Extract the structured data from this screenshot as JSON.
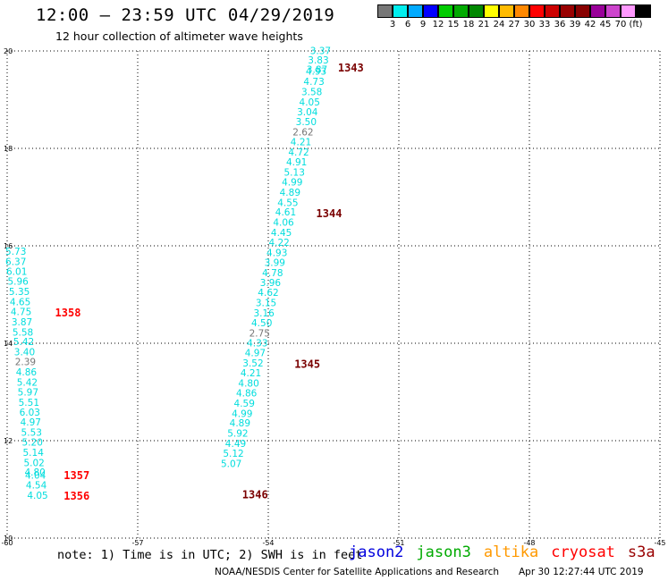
{
  "header": {
    "title": "12:00 – 23:59 UTC 04/29/2019",
    "subtitle": "12 hour collection of altimeter wave heights"
  },
  "color_scale": {
    "colors": [
      "#777777",
      "#00eeee",
      "#00aaff",
      "#0000ff",
      "#00cc00",
      "#00aa00",
      "#008800",
      "#ffff00",
      "#ffbb00",
      "#ff8800",
      "#ff0000",
      "#cc0000",
      "#990000",
      "#880000",
      "#990099",
      "#cc44cc",
      "#ff99ff",
      "#000000"
    ],
    "labels": [
      "3",
      "6",
      "9",
      "12",
      "15",
      "18",
      "21",
      "24",
      "27",
      "30",
      "33",
      "36",
      "39",
      "42",
      "45",
      "70",
      "(ft)"
    ]
  },
  "chart_data": {
    "type": "scatter",
    "xlim": [
      -60,
      -45
    ],
    "ylim": [
      10,
      20
    ],
    "x_ticks": [
      "-60",
      "-57",
      "-54",
      "-51",
      "-48",
      "-45"
    ],
    "y_ticks": [
      "20",
      "18",
      "16",
      "14",
      "12",
      "10"
    ],
    "grid": true,
    "series": [
      {
        "name": "jason2",
        "color": "#00dddd",
        "points": [
          {
            "x": -52.8,
            "y": 19.94,
            "label": "3.37"
          },
          {
            "x": -52.85,
            "y": 19.74,
            "label": "3.83"
          },
          {
            "x": -52.88,
            "y": 19.55,
            "label": "3.87"
          },
          {
            "x": -52.9,
            "y": 19.51,
            "label": "4.93"
          },
          {
            "x": -52.95,
            "y": 19.3,
            "label": "4.73"
          },
          {
            "x": -53.0,
            "y": 19.09,
            "label": "3.58"
          },
          {
            "x": -53.05,
            "y": 18.88,
            "label": "4.05"
          },
          {
            "x": -53.1,
            "y": 18.68,
            "label": "3.04"
          },
          {
            "x": -53.13,
            "y": 18.48,
            "label": "3.50"
          },
          {
            "x": -53.2,
            "y": 18.27,
            "label": "2.62",
            "color": "#777777"
          },
          {
            "x": -53.25,
            "y": 18.06,
            "label": "4.21"
          },
          {
            "x": -53.3,
            "y": 17.85,
            "label": "4.72"
          },
          {
            "x": -53.35,
            "y": 17.65,
            "label": "4.91"
          },
          {
            "x": -53.4,
            "y": 17.44,
            "label": "5.13"
          },
          {
            "x": -53.45,
            "y": 17.24,
            "label": "4.99"
          },
          {
            "x": -53.5,
            "y": 17.03,
            "label": "4.89"
          },
          {
            "x": -53.55,
            "y": 16.82,
            "label": "4.55"
          },
          {
            "x": -53.6,
            "y": 16.62,
            "label": "4.61"
          },
          {
            "x": -53.65,
            "y": 16.41,
            "label": "4.06"
          },
          {
            "x": -53.7,
            "y": 16.2,
            "label": "4.45"
          },
          {
            "x": -53.75,
            "y": 16.0,
            "label": "4.22"
          },
          {
            "x": -53.8,
            "y": 15.79,
            "label": "4.93"
          },
          {
            "x": -53.85,
            "y": 15.59,
            "label": "3.99"
          },
          {
            "x": -53.9,
            "y": 15.38,
            "label": "4.78"
          },
          {
            "x": -53.95,
            "y": 15.17,
            "label": "3.96"
          },
          {
            "x": -54.0,
            "y": 14.97,
            "label": "4.62"
          },
          {
            "x": -54.05,
            "y": 14.76,
            "label": "3.15"
          },
          {
            "x": -54.1,
            "y": 14.55,
            "label": "3.16"
          },
          {
            "x": -54.15,
            "y": 14.35,
            "label": "4.50"
          },
          {
            "x": -54.2,
            "y": 14.14,
            "label": "2.75",
            "color": "#777777"
          },
          {
            "x": -54.25,
            "y": 13.94,
            "label": "4.33"
          },
          {
            "x": -54.3,
            "y": 13.73,
            "label": "4.97"
          },
          {
            "x": -54.35,
            "y": 13.52,
            "label": "3.52"
          },
          {
            "x": -54.4,
            "y": 13.32,
            "label": "4.21"
          },
          {
            "x": -54.45,
            "y": 13.11,
            "label": "4.80"
          },
          {
            "x": -54.5,
            "y": 12.91,
            "label": "4.86"
          },
          {
            "x": -54.55,
            "y": 12.7,
            "label": "4.59"
          },
          {
            "x": -54.6,
            "y": 12.49,
            "label": "4.99"
          },
          {
            "x": -54.65,
            "y": 12.29,
            "label": "4.89"
          },
          {
            "x": -54.7,
            "y": 12.08,
            "label": "5.92"
          },
          {
            "x": -54.75,
            "y": 11.87,
            "label": "4.49"
          },
          {
            "x": -54.8,
            "y": 11.67,
            "label": "5.12"
          },
          {
            "x": -54.85,
            "y": 11.46,
            "label": "5.07"
          },
          {
            "x": -59.8,
            "y": 15.82,
            "label": "5.73"
          },
          {
            "x": -59.8,
            "y": 15.61,
            "label": "6.37"
          },
          {
            "x": -59.78,
            "y": 15.4,
            "label": "6.01"
          },
          {
            "x": -59.75,
            "y": 15.2,
            "label": "5.96"
          },
          {
            "x": -59.72,
            "y": 14.99,
            "label": "5.35"
          },
          {
            "x": -59.7,
            "y": 14.78,
            "label": "4.65"
          },
          {
            "x": -59.68,
            "y": 14.58,
            "label": "4.75"
          },
          {
            "x": -59.66,
            "y": 14.37,
            "label": "3.87"
          },
          {
            "x": -59.64,
            "y": 14.16,
            "label": "5.58"
          },
          {
            "x": -59.62,
            "y": 13.96,
            "label": "5.42"
          },
          {
            "x": -59.6,
            "y": 13.75,
            "label": "3.40"
          },
          {
            "x": -59.58,
            "y": 13.55,
            "label": "2.39",
            "color": "#777777"
          },
          {
            "x": -59.56,
            "y": 13.34,
            "label": "4.86"
          },
          {
            "x": -59.54,
            "y": 13.13,
            "label": "5.42"
          },
          {
            "x": -59.52,
            "y": 12.93,
            "label": "5.97"
          },
          {
            "x": -59.5,
            "y": 12.72,
            "label": "5.51"
          },
          {
            "x": -59.48,
            "y": 12.51,
            "label": "6.03"
          },
          {
            "x": -59.46,
            "y": 12.31,
            "label": "4.97"
          },
          {
            "x": -59.44,
            "y": 12.1,
            "label": "5.53"
          },
          {
            "x": -59.42,
            "y": 11.9,
            "label": "5.20"
          },
          {
            "x": -59.4,
            "y": 11.69,
            "label": "5.14"
          },
          {
            "x": -59.38,
            "y": 11.48,
            "label": "5.02"
          },
          {
            "x": -59.36,
            "y": 11.28,
            "label": "4.80"
          },
          {
            "x": -59.35,
            "y": 11.22,
            "label": "4.04"
          },
          {
            "x": -59.33,
            "y": 11.02,
            "label": "4.54"
          },
          {
            "x": -59.3,
            "y": 10.81,
            "label": "4.05"
          }
        ]
      }
    ],
    "time_annotations": [
      {
        "x": -52.4,
        "y": 19.58,
        "label": "1343",
        "color": "#7a0000"
      },
      {
        "x": -52.9,
        "y": 16.59,
        "label": "1344",
        "color": "#7a0000"
      },
      {
        "x": -53.4,
        "y": 13.5,
        "label": "1345",
        "color": "#7a0000"
      },
      {
        "x": -54.6,
        "y": 10.82,
        "label": "1346",
        "color": "#7a0000"
      },
      {
        "x": -58.9,
        "y": 14.55,
        "label": "1358",
        "color": "#ff0000"
      },
      {
        "x": -58.7,
        "y": 11.21,
        "label": "1357",
        "color": "#ff0000"
      },
      {
        "x": -58.7,
        "y": 10.79,
        "label": "1356",
        "color": "#ff0000"
      }
    ]
  },
  "footer": {
    "note": "note: 1) Time is in UTC; 2) SWH is in feet",
    "satellites": [
      {
        "label": "jason2",
        "color": "#0000dd"
      },
      {
        "label": "jason3",
        "color": "#00aa00"
      },
      {
        "label": "altika",
        "color": "#ff9900"
      },
      {
        "label": "cryosat",
        "color": "#ff0000"
      },
      {
        "label": "s3a",
        "color": "#990000"
      }
    ],
    "credit": "NOAA/NESDIS Center for Satellite Applications and Research",
    "timestamp": "Apr 30 12:27:44 UTC 2019"
  }
}
